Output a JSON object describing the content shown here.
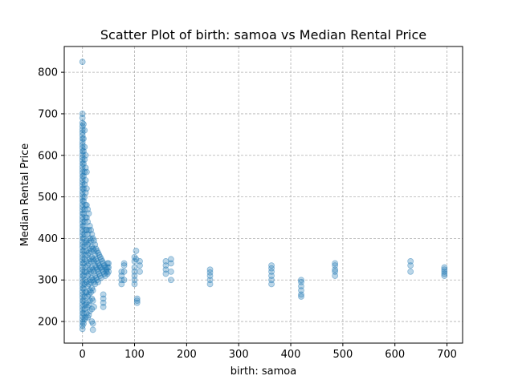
{
  "chart_data": {
    "type": "scatter",
    "title": "Scatter Plot of birth: samoa vs Median Rental Price",
    "xlabel": "birth: samoa",
    "ylabel": "Median Rental Price",
    "xlim": [
      -35,
      730
    ],
    "ylim": [
      148,
      862
    ],
    "x_ticks": [
      0,
      100,
      200,
      300,
      400,
      500,
      600,
      700
    ],
    "y_ticks": [
      200,
      300,
      400,
      500,
      600,
      700,
      800
    ],
    "grid": true,
    "legend": "none",
    "marker_color": "#1f77b4",
    "points": [
      [
        0,
        825
      ],
      [
        0,
        700
      ],
      [
        0,
        690
      ],
      [
        0,
        678
      ],
      [
        0,
        670
      ],
      [
        0,
        662
      ],
      [
        0,
        655
      ],
      [
        0,
        648
      ],
      [
        0,
        640
      ],
      [
        0,
        632
      ],
      [
        0,
        625
      ],
      [
        0,
        618
      ],
      [
        0,
        610
      ],
      [
        0,
        602
      ],
      [
        0,
        595
      ],
      [
        0,
        588
      ],
      [
        0,
        580
      ],
      [
        0,
        572
      ],
      [
        0,
        565
      ],
      [
        0,
        558
      ],
      [
        0,
        550
      ],
      [
        0,
        542
      ],
      [
        0,
        535
      ],
      [
        0,
        528
      ],
      [
        0,
        520
      ],
      [
        0,
        512
      ],
      [
        0,
        505
      ],
      [
        0,
        498
      ],
      [
        0,
        490
      ],
      [
        0,
        482
      ],
      [
        0,
        475
      ],
      [
        0,
        468
      ],
      [
        0,
        460
      ],
      [
        0,
        452
      ],
      [
        0,
        445
      ],
      [
        0,
        438
      ],
      [
        0,
        430
      ],
      [
        0,
        422
      ],
      [
        0,
        415
      ],
      [
        0,
        408
      ],
      [
        0,
        400
      ],
      [
        0,
        392
      ],
      [
        0,
        385
      ],
      [
        0,
        378
      ],
      [
        0,
        370
      ],
      [
        0,
        362
      ],
      [
        0,
        355
      ],
      [
        0,
        348
      ],
      [
        0,
        340
      ],
      [
        0,
        332
      ],
      [
        0,
        325
      ],
      [
        0,
        318
      ],
      [
        0,
        310
      ],
      [
        0,
        302
      ],
      [
        0,
        295
      ],
      [
        0,
        288
      ],
      [
        0,
        280
      ],
      [
        0,
        272
      ],
      [
        0,
        265
      ],
      [
        0,
        258
      ],
      [
        0,
        250
      ],
      [
        0,
        242
      ],
      [
        0,
        235
      ],
      [
        0,
        228
      ],
      [
        0,
        220
      ],
      [
        0,
        212
      ],
      [
        0,
        205
      ],
      [
        0,
        198
      ],
      [
        0,
        190
      ],
      [
        0,
        182
      ],
      [
        2,
        675
      ],
      [
        2,
        640
      ],
      [
        2,
        610
      ],
      [
        2,
        580
      ],
      [
        2,
        550
      ],
      [
        2,
        520
      ],
      [
        2,
        490
      ],
      [
        2,
        460
      ],
      [
        2,
        430
      ],
      [
        2,
        400
      ],
      [
        2,
        370
      ],
      [
        2,
        340
      ],
      [
        2,
        310
      ],
      [
        2,
        280
      ],
      [
        2,
        250
      ],
      [
        2,
        220
      ],
      [
        2,
        195
      ],
      [
        4,
        660
      ],
      [
        4,
        620
      ],
      [
        4,
        590
      ],
      [
        4,
        560
      ],
      [
        4,
        530
      ],
      [
        4,
        500
      ],
      [
        4,
        470
      ],
      [
        4,
        440
      ],
      [
        4,
        410
      ],
      [
        4,
        380
      ],
      [
        4,
        350
      ],
      [
        4,
        320
      ],
      [
        4,
        290
      ],
      [
        4,
        260
      ],
      [
        4,
        230
      ],
      [
        4,
        205
      ],
      [
        6,
        600
      ],
      [
        6,
        570
      ],
      [
        6,
        540
      ],
      [
        6,
        510
      ],
      [
        6,
        480
      ],
      [
        6,
        450
      ],
      [
        6,
        420
      ],
      [
        6,
        390
      ],
      [
        6,
        360
      ],
      [
        6,
        330
      ],
      [
        6,
        300
      ],
      [
        6,
        270
      ],
      [
        6,
        240
      ],
      [
        6,
        210
      ],
      [
        8,
        560
      ],
      [
        8,
        520
      ],
      [
        8,
        480
      ],
      [
        8,
        450
      ],
      [
        8,
        420
      ],
      [
        8,
        395
      ],
      [
        8,
        370
      ],
      [
        8,
        345
      ],
      [
        8,
        320
      ],
      [
        8,
        295
      ],
      [
        8,
        270
      ],
      [
        8,
        245
      ],
      [
        8,
        220
      ],
      [
        10,
        470
      ],
      [
        10,
        440
      ],
      [
        10,
        410
      ],
      [
        10,
        385
      ],
      [
        10,
        360
      ],
      [
        10,
        335
      ],
      [
        10,
        310
      ],
      [
        10,
        285
      ],
      [
        10,
        260
      ],
      [
        10,
        235
      ],
      [
        10,
        210
      ],
      [
        12,
        460
      ],
      [
        12,
        420
      ],
      [
        12,
        390
      ],
      [
        12,
        365
      ],
      [
        12,
        340
      ],
      [
        12,
        315
      ],
      [
        12,
        290
      ],
      [
        12,
        265
      ],
      [
        12,
        240
      ],
      [
        12,
        215
      ],
      [
        14,
        430
      ],
      [
        14,
        400
      ],
      [
        14,
        375
      ],
      [
        14,
        350
      ],
      [
        14,
        325
      ],
      [
        14,
        300
      ],
      [
        14,
        275
      ],
      [
        14,
        250
      ],
      [
        14,
        225
      ],
      [
        16,
        420
      ],
      [
        16,
        395
      ],
      [
        16,
        370
      ],
      [
        16,
        345
      ],
      [
        16,
        320
      ],
      [
        16,
        295
      ],
      [
        16,
        270
      ],
      [
        18,
        410
      ],
      [
        18,
        380
      ],
      [
        18,
        355
      ],
      [
        18,
        330
      ],
      [
        18,
        305
      ],
      [
        18,
        280
      ],
      [
        18,
        255
      ],
      [
        18,
        230
      ],
      [
        18,
        200
      ],
      [
        20,
        400
      ],
      [
        20,
        375
      ],
      [
        20,
        350
      ],
      [
        20,
        325
      ],
      [
        20,
        300
      ],
      [
        20,
        275
      ],
      [
        20,
        250
      ],
      [
        20,
        195
      ],
      [
        20,
        180
      ],
      [
        22,
        395
      ],
      [
        22,
        370
      ],
      [
        22,
        345
      ],
      [
        22,
        320
      ],
      [
        22,
        295
      ],
      [
        22,
        235
      ],
      [
        24,
        385
      ],
      [
        24,
        360
      ],
      [
        24,
        335
      ],
      [
        24,
        310
      ],
      [
        24,
        290
      ],
      [
        26,
        375
      ],
      [
        26,
        350
      ],
      [
        26,
        330
      ],
      [
        26,
        305
      ],
      [
        28,
        370
      ],
      [
        28,
        345
      ],
      [
        28,
        325
      ],
      [
        28,
        300
      ],
      [
        30,
        365
      ],
      [
        30,
        340
      ],
      [
        30,
        320
      ],
      [
        30,
        295
      ],
      [
        32,
        360
      ],
      [
        32,
        335
      ],
      [
        32,
        315
      ],
      [
        34,
        355
      ],
      [
        34,
        330
      ],
      [
        34,
        310
      ],
      [
        36,
        350
      ],
      [
        36,
        330
      ],
      [
        36,
        305
      ],
      [
        38,
        345
      ],
      [
        38,
        325
      ],
      [
        40,
        340
      ],
      [
        40,
        320
      ],
      [
        40,
        265
      ],
      [
        40,
        255
      ],
      [
        40,
        245
      ],
      [
        40,
        235
      ],
      [
        42,
        335
      ],
      [
        42,
        315
      ],
      [
        44,
        330
      ],
      [
        44,
        310
      ],
      [
        46,
        325
      ],
      [
        46,
        320
      ],
      [
        48,
        340
      ],
      [
        48,
        330
      ],
      [
        48,
        315
      ],
      [
        50,
        340
      ],
      [
        50,
        330
      ],
      [
        50,
        320
      ],
      [
        75,
        320
      ],
      [
        75,
        310
      ],
      [
        75,
        300
      ],
      [
        75,
        290
      ],
      [
        80,
        340
      ],
      [
        80,
        335
      ],
      [
        80,
        320
      ],
      [
        80,
        300
      ],
      [
        100,
        355
      ],
      [
        100,
        345
      ],
      [
        100,
        330
      ],
      [
        100,
        320
      ],
      [
        100,
        310
      ],
      [
        100,
        300
      ],
      [
        100,
        290
      ],
      [
        103,
        370
      ],
      [
        103,
        350
      ],
      [
        105,
        255
      ],
      [
        105,
        250
      ],
      [
        105,
        245
      ],
      [
        110,
        345
      ],
      [
        110,
        335
      ],
      [
        110,
        320
      ],
      [
        160,
        345
      ],
      [
        160,
        335
      ],
      [
        160,
        325
      ],
      [
        160,
        315
      ],
      [
        170,
        350
      ],
      [
        170,
        340
      ],
      [
        170,
        320
      ],
      [
        170,
        300
      ],
      [
        245,
        325
      ],
      [
        245,
        318
      ],
      [
        245,
        310
      ],
      [
        245,
        300
      ],
      [
        245,
        290
      ],
      [
        363,
        335
      ],
      [
        363,
        328
      ],
      [
        363,
        320
      ],
      [
        363,
        310
      ],
      [
        363,
        300
      ],
      [
        363,
        290
      ],
      [
        420,
        300
      ],
      [
        420,
        295
      ],
      [
        420,
        285
      ],
      [
        420,
        275
      ],
      [
        420,
        265
      ],
      [
        420,
        260
      ],
      [
        485,
        340
      ],
      [
        485,
        335
      ],
      [
        485,
        325
      ],
      [
        485,
        320
      ],
      [
        485,
        310
      ],
      [
        630,
        345
      ],
      [
        630,
        335
      ],
      [
        630,
        320
      ],
      [
        695,
        330
      ],
      [
        695,
        325
      ],
      [
        695,
        320
      ],
      [
        695,
        315
      ],
      [
        695,
        310
      ]
    ]
  }
}
